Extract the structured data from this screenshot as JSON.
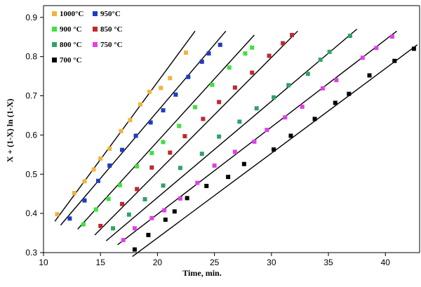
{
  "chart_data": {
    "type": "scatter",
    "xlabel": "Time, min.",
    "ylabel": "X + (1-X) ln (1-X)",
    "xlim": [
      10,
      43
    ],
    "ylim": [
      0.3,
      0.93
    ],
    "xticks": [
      10,
      15,
      20,
      25,
      30,
      35,
      40
    ],
    "yticks": [
      0.3,
      0.4,
      0.5,
      0.6,
      0.7,
      0.8,
      0.9
    ],
    "xtick_labels": [
      "10",
      "15",
      "20",
      "25",
      "30",
      "35",
      "40"
    ],
    "ytick_labels": [
      "0.3",
      "0.4",
      "0.5",
      "0.6",
      "0.7",
      "0.8",
      "0.9"
    ],
    "grid": false,
    "legend_position": "top-left",
    "series": [
      {
        "name": "1000°C",
        "color": "#F2B33D",
        "fit": [
          [
            11.0,
            0.38
          ],
          [
            23.3,
            0.865
          ]
        ],
        "points": [
          [
            11.2,
            0.398
          ],
          [
            12.7,
            0.452
          ],
          [
            13.6,
            0.482
          ],
          [
            14.4,
            0.512
          ],
          [
            15.0,
            0.54
          ],
          [
            15.8,
            0.565
          ],
          [
            16.8,
            0.61
          ],
          [
            17.6,
            0.638
          ],
          [
            18.5,
            0.678
          ],
          [
            19.3,
            0.71
          ],
          [
            20.3,
            0.72
          ],
          [
            21.1,
            0.745
          ],
          [
            22.5,
            0.81
          ]
        ]
      },
      {
        "name": "950°C",
        "color": "#1F3DBE",
        "fit": [
          [
            11.5,
            0.37
          ],
          [
            26.0,
            0.865
          ]
        ],
        "points": [
          [
            12.3,
            0.387
          ],
          [
            13.6,
            0.433
          ],
          [
            14.8,
            0.483
          ],
          [
            15.8,
            0.522
          ],
          [
            16.9,
            0.562
          ],
          [
            18.1,
            0.598
          ],
          [
            19.4,
            0.632
          ],
          [
            20.5,
            0.663
          ],
          [
            21.6,
            0.703
          ],
          [
            22.7,
            0.748
          ],
          [
            23.9,
            0.787
          ],
          [
            24.5,
            0.808
          ],
          [
            25.5,
            0.83
          ]
        ]
      },
      {
        "name": "900 °C",
        "color": "#3BE33B",
        "fit": [
          [
            13.0,
            0.36
          ],
          [
            28.5,
            0.855
          ]
        ],
        "points": [
          [
            13.5,
            0.372
          ],
          [
            14.6,
            0.41
          ],
          [
            15.7,
            0.437
          ],
          [
            16.7,
            0.472
          ],
          [
            18.2,
            0.52
          ],
          [
            19.5,
            0.554
          ],
          [
            20.5,
            0.582
          ],
          [
            21.9,
            0.623
          ],
          [
            23.3,
            0.671
          ],
          [
            24.8,
            0.728
          ],
          [
            26.3,
            0.772
          ],
          [
            27.7,
            0.808
          ],
          [
            28.3,
            0.823
          ]
        ]
      },
      {
        "name": "850 °C",
        "color": "#C0282D",
        "fit": [
          [
            14.5,
            0.345
          ],
          [
            32.3,
            0.865
          ]
        ],
        "points": [
          [
            15.0,
            0.368
          ],
          [
            16.9,
            0.424
          ],
          [
            18.2,
            0.462
          ],
          [
            19.5,
            0.517
          ],
          [
            21.1,
            0.555
          ],
          [
            22.4,
            0.597
          ],
          [
            24.0,
            0.641
          ],
          [
            25.4,
            0.684
          ],
          [
            26.8,
            0.721
          ],
          [
            28.3,
            0.759
          ],
          [
            29.8,
            0.802
          ],
          [
            31.0,
            0.834
          ],
          [
            31.8,
            0.855
          ]
        ]
      },
      {
        "name": "800 °C",
        "color": "#2FA368",
        "fit": [
          [
            15.5,
            0.33
          ],
          [
            37.5,
            0.87
          ]
        ],
        "points": [
          [
            16.1,
            0.362
          ],
          [
            17.5,
            0.397
          ],
          [
            18.9,
            0.436
          ],
          [
            20.5,
            0.471
          ],
          [
            22.0,
            0.516
          ],
          [
            23.9,
            0.552
          ],
          [
            25.4,
            0.596
          ],
          [
            27.2,
            0.634
          ],
          [
            28.7,
            0.668
          ],
          [
            30.2,
            0.696
          ],
          [
            31.5,
            0.727
          ],
          [
            33.2,
            0.756
          ],
          [
            34.3,
            0.792
          ],
          [
            35.1,
            0.812
          ],
          [
            36.9,
            0.853
          ]
        ]
      },
      {
        "name": "750 °C",
        "color": "#E040E8",
        "fit": [
          [
            16.5,
            0.32
          ],
          [
            41.0,
            0.865
          ]
        ],
        "points": [
          [
            17.0,
            0.332
          ],
          [
            18.0,
            0.362
          ],
          [
            19.5,
            0.388
          ],
          [
            20.6,
            0.408
          ],
          [
            22.0,
            0.438
          ],
          [
            23.5,
            0.478
          ],
          [
            25.0,
            0.522
          ],
          [
            26.8,
            0.557
          ],
          [
            28.5,
            0.583
          ],
          [
            29.6,
            0.613
          ],
          [
            31.2,
            0.645
          ],
          [
            32.7,
            0.672
          ],
          [
            34.5,
            0.719
          ],
          [
            35.7,
            0.74
          ],
          [
            38.0,
            0.797
          ],
          [
            39.2,
            0.822
          ],
          [
            40.6,
            0.851
          ]
        ]
      },
      {
        "name": "700 °C",
        "color": "#000000",
        "fit": [
          [
            17.8,
            0.29
          ],
          [
            42.8,
            0.83
          ]
        ],
        "points": [
          [
            18.0,
            0.308
          ],
          [
            19.2,
            0.345
          ],
          [
            20.7,
            0.384
          ],
          [
            21.5,
            0.405
          ],
          [
            22.6,
            0.439
          ],
          [
            24.3,
            0.47
          ],
          [
            26.2,
            0.493
          ],
          [
            27.6,
            0.526
          ],
          [
            30.2,
            0.563
          ],
          [
            31.7,
            0.598
          ],
          [
            33.8,
            0.641
          ],
          [
            35.6,
            0.682
          ],
          [
            36.8,
            0.705
          ],
          [
            38.6,
            0.752
          ],
          [
            40.8,
            0.789
          ],
          [
            42.5,
            0.82
          ]
        ]
      }
    ]
  }
}
